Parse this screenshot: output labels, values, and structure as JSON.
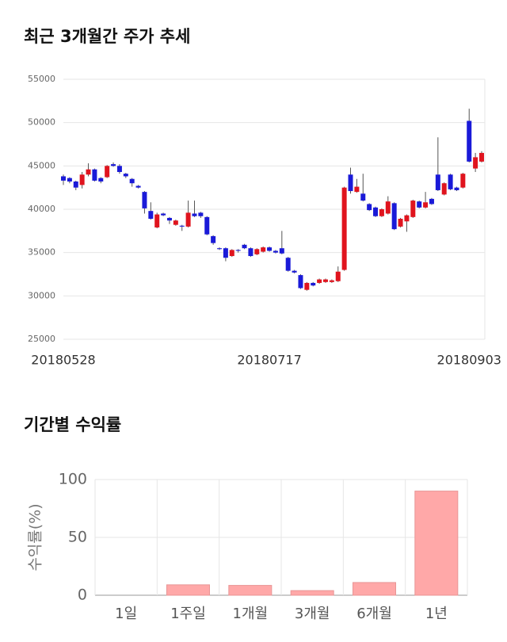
{
  "chart_data": [
    {
      "type": "candlestick",
      "title": "최근 3개월간 주가 추세",
      "categories": [
        "20180528",
        null,
        null,
        null,
        null,
        null,
        null,
        null,
        null,
        null,
        null,
        null,
        null,
        null,
        null,
        null,
        null,
        null,
        null,
        null,
        null,
        null,
        null,
        null,
        null,
        null,
        null,
        null,
        null,
        null,
        null,
        null,
        null,
        "20180717",
        null,
        null,
        null,
        null,
        null,
        null,
        null,
        null,
        null,
        null,
        null,
        null,
        null,
        null,
        null,
        null,
        null,
        null,
        null,
        null,
        null,
        null,
        null,
        null,
        null,
        null,
        null,
        null,
        null,
        null,
        null,
        "20180903",
        null,
        null
      ],
      "open": [
        43800,
        43600,
        43200,
        42800,
        44000,
        44600,
        43600,
        43700,
        45200,
        45000,
        44100,
        43500,
        42700,
        42000,
        39800,
        37900,
        39500,
        39000,
        38200,
        38100,
        38000,
        39500,
        39600,
        39100,
        36900,
        35500,
        35500,
        34600,
        35300,
        35900,
        35500,
        34800,
        35100,
        35600,
        35200,
        35500,
        34400,
        32900,
        32400,
        30700,
        31500,
        31500,
        31600,
        31600,
        31700,
        33000,
        44000,
        42000,
        41800,
        40600,
        40200,
        39200,
        39500,
        40700,
        38000,
        38600,
        39100,
        40900,
        40200,
        41200,
        44000,
        41700,
        44000,
        42500,
        42500,
        50200,
        44700,
        45500
      ],
      "high": [
        44000,
        43700,
        43300,
        44300,
        45300,
        44700,
        43700,
        45100,
        45400,
        45200,
        44200,
        43600,
        42800,
        42100,
        40800,
        39600,
        39600,
        39100,
        38800,
        38200,
        41000,
        41000,
        39700,
        39200,
        37000,
        35600,
        35600,
        35400,
        35400,
        36000,
        35600,
        35500,
        35700,
        35700,
        35300,
        37500,
        34500,
        33000,
        32500,
        31600,
        31600,
        32000,
        32000,
        31900,
        33400,
        42600,
        44800,
        43500,
        44100,
        40700,
        40300,
        40100,
        41500,
        40800,
        39000,
        39400,
        41100,
        41000,
        42000,
        41300,
        48300,
        43100,
        44100,
        42600,
        44200,
        51600,
        46500,
        46700
      ],
      "low": [
        42800,
        43000,
        42200,
        42400,
        43800,
        43200,
        43000,
        43600,
        44900,
        44100,
        43600,
        42600,
        42400,
        39500,
        38800,
        37800,
        39200,
        38300,
        38100,
        37500,
        37900,
        39100,
        39000,
        37000,
        35900,
        35300,
        34000,
        34500,
        35000,
        35400,
        34500,
        34700,
        35000,
        35100,
        34900,
        34800,
        32800,
        32600,
        30800,
        30600,
        31100,
        31400,
        31500,
        31500,
        31600,
        32900,
        41800,
        41900,
        40900,
        39800,
        39100,
        39100,
        39400,
        37600,
        37900,
        37400,
        39000,
        40100,
        40100,
        40500,
        42100,
        41600,
        42200,
        42100,
        42400,
        45400,
        44300,
        45400
      ],
      "close": [
        43300,
        43200,
        42500,
        44000,
        44600,
        43300,
        43200,
        45000,
        45000,
        44300,
        43800,
        43000,
        42500,
        40100,
        38900,
        39400,
        39300,
        38700,
        38700,
        38000,
        39600,
        39200,
        39200,
        37100,
        36100,
        35400,
        34400,
        35300,
        35200,
        35500,
        34600,
        35400,
        35600,
        35200,
        35000,
        34900,
        32900,
        32700,
        30900,
        31500,
        31200,
        31900,
        31900,
        31800,
        32800,
        42500,
        42100,
        42600,
        41000,
        39900,
        39200,
        40000,
        40900,
        37700,
        38900,
        39300,
        41000,
        40200,
        40800,
        40600,
        42200,
        43000,
        42300,
        42200,
        44100,
        45500,
        46000,
        46500
      ],
      "up_color": "#e0141e",
      "down_color": "#1a1ad8",
      "ylim": [
        25000,
        55000
      ],
      "yticks": [
        25000,
        30000,
        35000,
        40000,
        45000,
        50000,
        55000
      ],
      "grid": true
    },
    {
      "type": "bar",
      "title": "기간별 수익률",
      "y_label": "수익률(%)",
      "categories": [
        "1일",
        "1주일",
        "1개월",
        "3개월",
        "6개월",
        "1년"
      ],
      "values": [
        0,
        9,
        8.5,
        4,
        11,
        90
      ],
      "color": "#ffa8a8",
      "ylim": [
        0,
        100
      ],
      "yticks": [
        0,
        50,
        100
      ],
      "grid": true
    }
  ]
}
